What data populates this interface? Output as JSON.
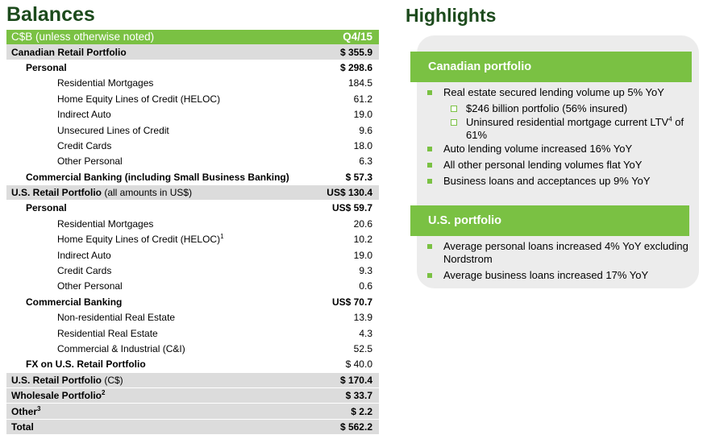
{
  "balances": {
    "title": "Balances",
    "header": {
      "label": "C$B (unless otherwise noted)",
      "value": "Q4/15"
    },
    "rows": [
      {
        "label": "Canadian Retail Portfolio",
        "value": "$ 355.9",
        "indent": 0,
        "bold": true,
        "shade": true
      },
      {
        "label": "Personal",
        "value": "$ 298.6",
        "indent": 1,
        "bold": true,
        "shade": false
      },
      {
        "label": "Residential Mortgages",
        "value": "184.5",
        "indent": 2,
        "bold": false,
        "shade": false
      },
      {
        "label": "Home Equity Lines of Credit (HELOC)",
        "value": "61.2",
        "indent": 2,
        "bold": false,
        "shade": false
      },
      {
        "label": "Indirect Auto",
        "value": "19.0",
        "indent": 2,
        "bold": false,
        "shade": false
      },
      {
        "label": "Unsecured Lines of Credit",
        "value": "9.6",
        "indent": 2,
        "bold": false,
        "shade": false
      },
      {
        "label": "Credit Cards",
        "value": "18.0",
        "indent": 2,
        "bold": false,
        "shade": false
      },
      {
        "label": "Other Personal",
        "value": "6.3",
        "indent": 2,
        "bold": false,
        "shade": false
      },
      {
        "label": "Commercial Banking (including Small Business Banking)",
        "value": "$ 57.3",
        "indent": 1,
        "bold": true,
        "shade": false
      },
      {
        "label": "U.S. Retail Portfolio",
        "label_suffix": " (all amounts in US$)",
        "value": "US$ 130.4",
        "indent": 0,
        "bold": true,
        "shade": true
      },
      {
        "label": "Personal",
        "value": "US$ 59.7",
        "indent": 1,
        "bold": true,
        "shade": false
      },
      {
        "label": "Residential Mortgages",
        "value": "20.6",
        "indent": 2,
        "bold": false,
        "shade": false
      },
      {
        "label": "Home Equity Lines of Credit (HELOC)",
        "sup": "1",
        "value": "10.2",
        "indent": 2,
        "bold": false,
        "shade": false
      },
      {
        "label": "Indirect Auto",
        "value": "19.0",
        "indent": 2,
        "bold": false,
        "shade": false
      },
      {
        "label": "Credit Cards",
        "value": "9.3",
        "indent": 2,
        "bold": false,
        "shade": false
      },
      {
        "label": "Other Personal",
        "value": "0.6",
        "indent": 2,
        "bold": false,
        "shade": false
      },
      {
        "label": "Commercial Banking",
        "value": "US$ 70.7",
        "indent": 1,
        "bold": true,
        "shade": false
      },
      {
        "label": "Non-residential Real Estate",
        "value": "13.9",
        "indent": 2,
        "bold": false,
        "shade": false
      },
      {
        "label": "Residential Real Estate",
        "value": "4.3",
        "indent": 2,
        "bold": false,
        "shade": false
      },
      {
        "label": "Commercial & Industrial (C&I)",
        "value": "52.5",
        "indent": 2,
        "bold": false,
        "shade": false
      },
      {
        "label": "FX on U.S. Retail Portfolio",
        "value": "$ 40.0",
        "indent": 1,
        "bold": true,
        "value_bold": false,
        "shade": false
      },
      {
        "label": "U.S. Retail Portfolio",
        "label_suffix": " (C$)",
        "value": "$ 170.4",
        "indent": 0,
        "bold": true,
        "shade": true
      },
      {
        "label": "Wholesale Portfolio",
        "sup": "2",
        "value": "$ 33.7",
        "indent": 0,
        "bold": true,
        "shade": true
      },
      {
        "label": "Other",
        "sup": "3",
        "value": "$ 2.2",
        "indent": 0,
        "bold": true,
        "shade": true
      },
      {
        "label": "Total",
        "value": "$ 562.2",
        "indent": 0,
        "bold": true,
        "shade": true
      }
    ]
  },
  "highlights": {
    "title": "Highlights",
    "sections": [
      {
        "heading": "Canadian portfolio",
        "items": [
          {
            "text": "Real estate secured lending volume up 5% YoY",
            "level": 1
          },
          {
            "text": "$246 billion portfolio (56% insured)",
            "level": 2
          },
          {
            "text": "Uninsured residential mortgage current LTV",
            "sup": "4",
            "text_after": " of 61%",
            "level": 2
          },
          {
            "text": "Auto lending volume increased 16% YoY",
            "level": 1
          },
          {
            "text": "All other personal lending volumes flat YoY",
            "level": 1
          },
          {
            "text": "Business loans and acceptances up 9% YoY",
            "level": 1
          }
        ]
      },
      {
        "heading": "U.S. portfolio",
        "items": [
          {
            "text": "Average personal loans increased 4% YoY excluding Nordstrom",
            "level": 1
          },
          {
            "text": "Average business loans increased 17% YoY",
            "level": 1
          }
        ]
      }
    ]
  },
  "colors": {
    "accent": "#7ac143",
    "title": "#1c4a1c",
    "shade": "#dcdcdc",
    "panel": "#ececec"
  }
}
